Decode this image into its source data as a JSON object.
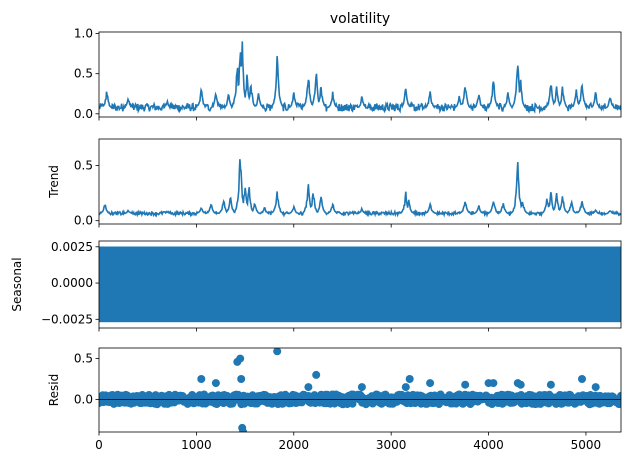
{
  "chart_data": [
    {
      "type": "line",
      "title": "volatility",
      "ylabel": "",
      "xlim": [
        0,
        5360
      ],
      "ylim": [
        -0.04,
        1.02
      ],
      "yticks": [
        0.0,
        0.5,
        1.0
      ],
      "ytick_labels": [
        "0.0",
        "0.5",
        "1.0"
      ],
      "x_tick_labels_shown": false,
      "series": [
        {
          "color": "#1f77b4",
          "baseline": 0.06,
          "noise": 0.05,
          "spikes": [
            [
              80,
              0.33
            ],
            [
              300,
              0.22
            ],
            [
              700,
              0.18
            ],
            [
              1050,
              0.35
            ],
            [
              1200,
              0.3
            ],
            [
              1330,
              0.27
            ],
            [
              1420,
              0.75
            ],
            [
              1450,
              1.0
            ],
            [
              1470,
              0.98
            ],
            [
              1520,
              0.55
            ],
            [
              1560,
              0.45
            ],
            [
              1640,
              0.3
            ],
            [
              1830,
              0.82
            ],
            [
              2000,
              0.3
            ],
            [
              2150,
              0.55
            ],
            [
              2230,
              0.6
            ],
            [
              2280,
              0.4
            ],
            [
              2400,
              0.3
            ],
            [
              2700,
              0.25
            ],
            [
              3150,
              0.4
            ],
            [
              3400,
              0.32
            ],
            [
              3700,
              0.25
            ],
            [
              3760,
              0.45
            ],
            [
              3900,
              0.28
            ],
            [
              4050,
              0.5
            ],
            [
              4200,
              0.3
            ],
            [
              4300,
              0.78
            ],
            [
              4330,
              0.45
            ],
            [
              4640,
              0.45
            ],
            [
              4700,
              0.4
            ],
            [
              4760,
              0.38
            ],
            [
              4900,
              0.33
            ],
            [
              4960,
              0.45
            ],
            [
              5100,
              0.3
            ],
            [
              5250,
              0.25
            ]
          ]
        }
      ]
    },
    {
      "type": "line",
      "title": "",
      "ylabel": "Trend",
      "xlim": [
        0,
        5360
      ],
      "ylim": [
        -0.03,
        0.74
      ],
      "yticks": [
        0.0,
        0.5
      ],
      "ytick_labels": [
        "0.0",
        "0.5"
      ],
      "x_tick_labels_shown": false,
      "series": [
        {
          "color": "#1f77b4",
          "baseline": 0.06,
          "noise": 0.015,
          "spikes": [
            [
              60,
              0.17
            ],
            [
              300,
              0.1
            ],
            [
              700,
              0.09
            ],
            [
              1050,
              0.14
            ],
            [
              1150,
              0.17
            ],
            [
              1280,
              0.21
            ],
            [
              1350,
              0.25
            ],
            [
              1450,
              0.71
            ],
            [
              1500,
              0.38
            ],
            [
              1540,
              0.35
            ],
            [
              1600,
              0.18
            ],
            [
              1700,
              0.13
            ],
            [
              1830,
              0.3
            ],
            [
              2000,
              0.14
            ],
            [
              2150,
              0.4
            ],
            [
              2200,
              0.3
            ],
            [
              2280,
              0.25
            ],
            [
              2400,
              0.18
            ],
            [
              2700,
              0.12
            ],
            [
              3150,
              0.27
            ],
            [
              3180,
              0.2
            ],
            [
              3400,
              0.18
            ],
            [
              3700,
              0.07
            ],
            [
              3760,
              0.22
            ],
            [
              3900,
              0.15
            ],
            [
              4050,
              0.22
            ],
            [
              4150,
              0.18
            ],
            [
              4300,
              0.6
            ],
            [
              4350,
              0.2
            ],
            [
              4600,
              0.25
            ],
            [
              4640,
              0.3
            ],
            [
              4700,
              0.27
            ],
            [
              4760,
              0.26
            ],
            [
              4850,
              0.2
            ],
            [
              4960,
              0.22
            ],
            [
              5100,
              0.1
            ],
            [
              5250,
              0.1
            ]
          ]
        }
      ]
    },
    {
      "type": "line",
      "title": "",
      "ylabel": "Seasonal",
      "xlim": [
        0,
        5360
      ],
      "ylim": [
        -0.0031,
        0.0029
      ],
      "yticks": [
        -0.0025,
        0.0,
        0.0025
      ],
      "ytick_labels": [
        "−0.0025",
        "0.0000",
        "0.0025"
      ],
      "x_tick_labels_shown": false,
      "series": [
        {
          "color": "#1f77b4",
          "amplitude_low": -0.0027,
          "amplitude_high": 0.0025
        }
      ]
    },
    {
      "type": "scatter",
      "title": "",
      "ylabel": "Resid",
      "xlim": [
        0,
        5360
      ],
      "ylim": [
        -0.4,
        0.63
      ],
      "yticks": [
        0.0,
        0.5
      ],
      "ytick_labels": [
        "0.0",
        "0.5"
      ],
      "xticks": [
        0,
        1000,
        2000,
        3000,
        4000,
        5000
      ],
      "xtick_labels": [
        "0",
        "1000",
        "2000",
        "3000",
        "4000",
        "5000"
      ],
      "baseline": 0.0,
      "axhline": 0.0,
      "series": [
        {
          "color": "#1f77b4",
          "noise": 0.05,
          "outliers": [
            [
              1050,
              0.25
            ],
            [
              1200,
              0.2
            ],
            [
              1420,
              0.46
            ],
            [
              1450,
              0.5
            ],
            [
              1470,
              -0.35
            ],
            [
              1480,
              -0.4
            ],
            [
              1460,
              0.25
            ],
            [
              1830,
              0.59
            ],
            [
              2150,
              0.15
            ],
            [
              2230,
              0.3
            ],
            [
              2700,
              0.15
            ],
            [
              3150,
              0.15
            ],
            [
              3190,
              0.25
            ],
            [
              3400,
              0.2
            ],
            [
              3760,
              0.18
            ],
            [
              4000,
              0.2
            ],
            [
              4050,
              0.2
            ],
            [
              4300,
              0.2
            ],
            [
              4330,
              0.18
            ],
            [
              4640,
              0.18
            ],
            [
              4960,
              0.25
            ],
            [
              5100,
              0.15
            ]
          ]
        }
      ]
    }
  ]
}
